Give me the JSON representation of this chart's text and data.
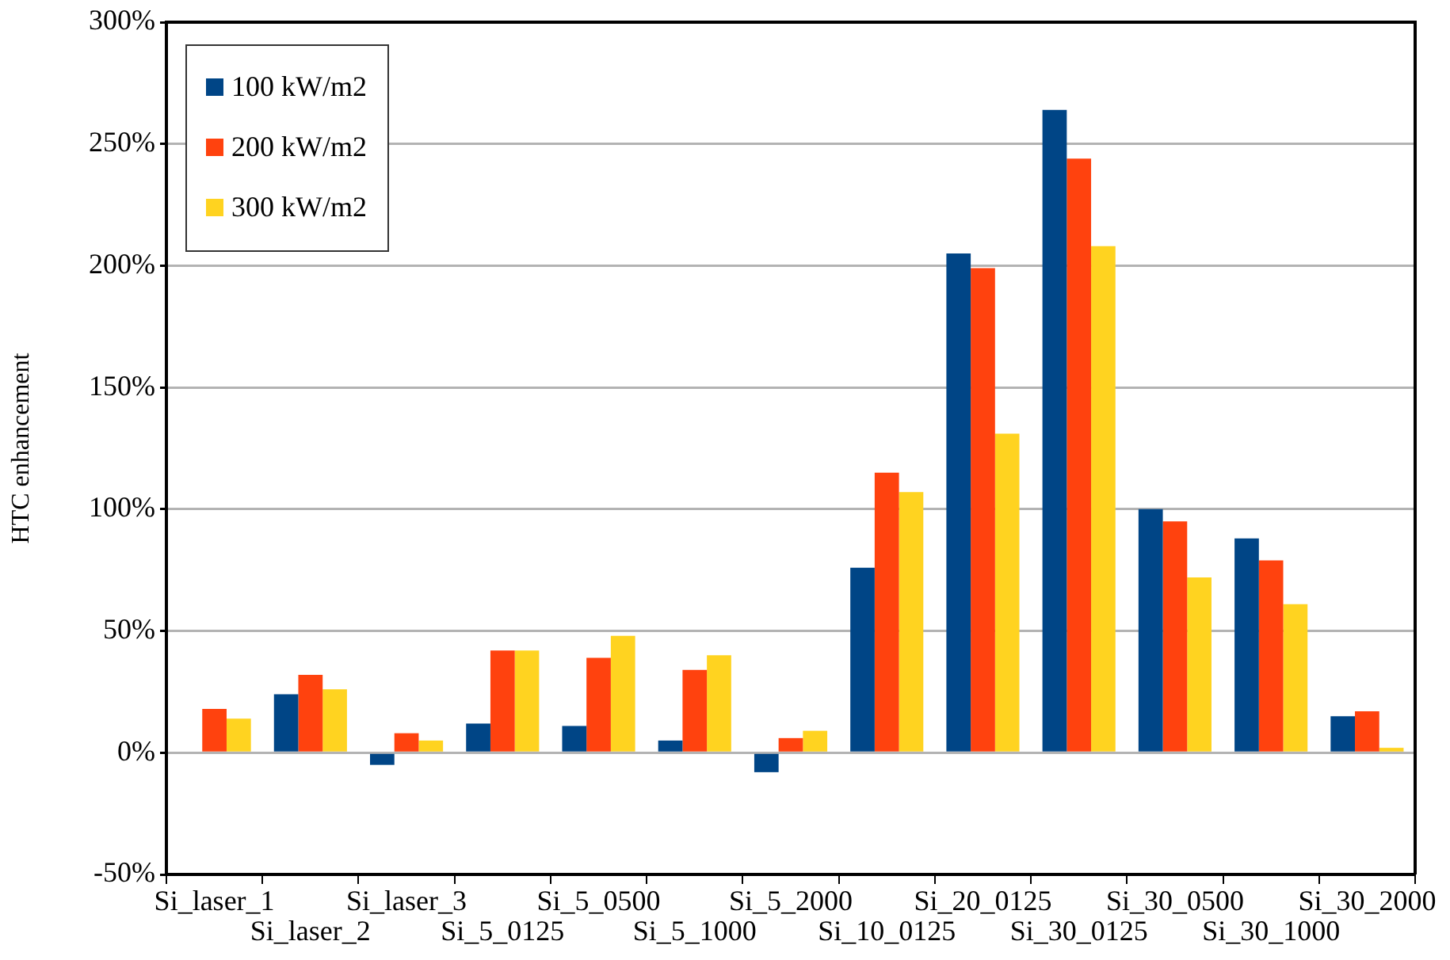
{
  "chart_data": {
    "type": "bar",
    "ylabel": "HTC enhancement",
    "categories": [
      "Si_laser_1",
      "Si_laser_2",
      "Si_laser_3",
      "Si_5_0125",
      "Si_5_0500",
      "Si_5_1000",
      "Si_5_2000",
      "Si_10_0125",
      "Si_20_0125",
      "Si_30_0125",
      "Si_30_0500",
      "Si_30_1000",
      "Si_30_2000"
    ],
    "series": [
      {
        "name": "100 kW/m2",
        "color": "#004586",
        "values": [
          null,
          24,
          -5,
          12,
          11,
          5,
          -8,
          76,
          205,
          264,
          100,
          88,
          15
        ]
      },
      {
        "name": "200 kW/m2",
        "color": "#ff420e",
        "values": [
          18,
          32,
          8,
          42,
          39,
          34,
          6,
          115,
          199,
          244,
          95,
          79,
          17
        ]
      },
      {
        "name": "300 kW/m2",
        "color": "#ffd320",
        "values": [
          14,
          26,
          5,
          42,
          48,
          40,
          9,
          107,
          131,
          208,
          72,
          61,
          2
        ]
      }
    ],
    "ylim": [
      -50,
      300
    ],
    "yticks": [
      {
        "value": -50,
        "label": "-50%"
      },
      {
        "value": 0,
        "label": "0%"
      },
      {
        "value": 50,
        "label": "50%"
      },
      {
        "value": 100,
        "label": "100%"
      },
      {
        "value": 150,
        "label": "150%"
      },
      {
        "value": 200,
        "label": "200%"
      },
      {
        "value": 250,
        "label": "250%"
      },
      {
        "value": 300,
        "label": "300%"
      }
    ],
    "grid": "y",
    "legend": "top left"
  }
}
